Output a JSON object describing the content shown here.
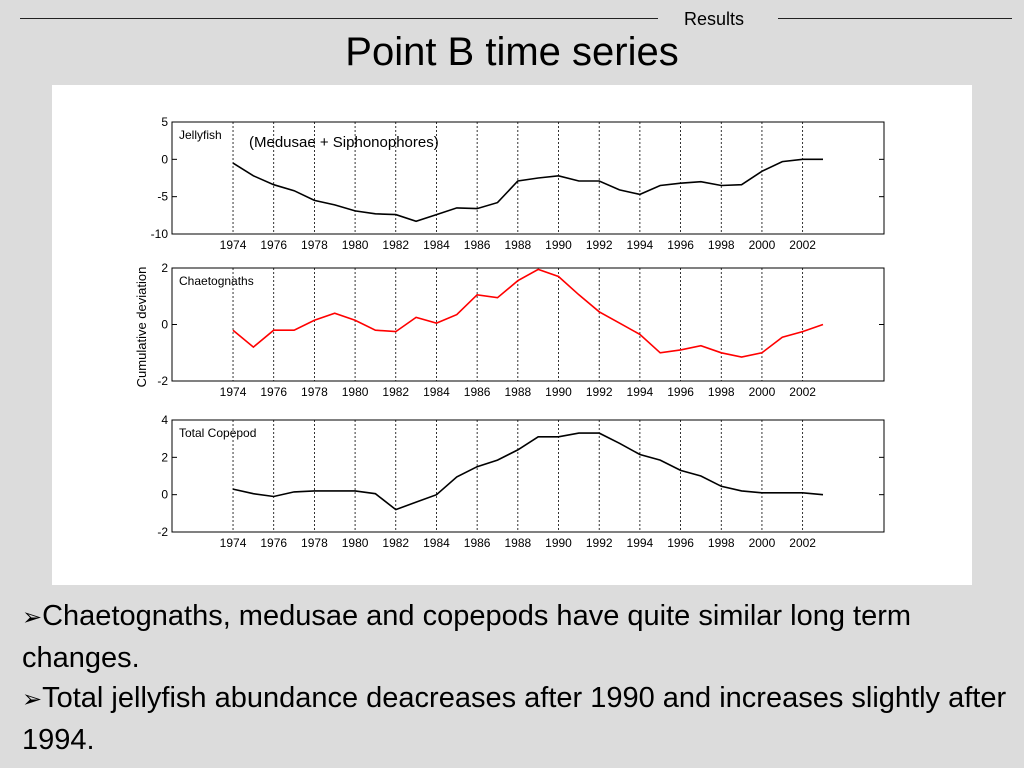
{
  "header": {
    "section": "Results",
    "title": "Point B time series"
  },
  "bullets": [
    {
      "marker": "➢",
      "text": "Chaetognaths, medusae and copepods have quite similar long term changes."
    },
    {
      "marker": "➢",
      "text": "Total jellyfish abundance deacreases after 1990 and increases slightly after 1994."
    }
  ],
  "shared_ylabel": "Cumulative deviation",
  "chart_data": [
    {
      "type": "line",
      "title": "",
      "panel_label": "Jellyfish",
      "annotation": "(Medusae + Siphonophores)",
      "xlabel": "",
      "ylabel": "",
      "xlim": [
        1971,
        2006
      ],
      "ylim": [
        -10,
        5
      ],
      "x_ticks": [
        1974,
        1976,
        1978,
        1980,
        1982,
        1984,
        1986,
        1988,
        1990,
        1992,
        1994,
        1996,
        1998,
        2000,
        2002
      ],
      "y_ticks": [
        5,
        0,
        -5,
        -10
      ],
      "vgrid": "dashed at x ticks",
      "color": "#000000",
      "x": [
        1974,
        1975,
        1976,
        1977,
        1978,
        1979,
        1980,
        1981,
        1982,
        1983,
        1984,
        1985,
        1986,
        1987,
        1988,
        1989,
        1990,
        1991,
        1992,
        1993,
        1994,
        1995,
        1996,
        1997,
        1998,
        1999,
        2000,
        2001,
        2002,
        2003
      ],
      "y": [
        -0.5,
        -2.2,
        -3.4,
        -4.2,
        -5.5,
        -6.1,
        -6.9,
        -7.3,
        -7.4,
        -8.3,
        -7.4,
        -6.5,
        -6.6,
        -5.8,
        -2.9,
        -2.5,
        -2.2,
        -2.9,
        -2.9,
        -4.1,
        -4.7,
        -3.5,
        -3.2,
        -3.0,
        -3.5,
        -3.4,
        -1.6,
        -0.3,
        0.0,
        0.0
      ]
    },
    {
      "type": "line",
      "title": "",
      "panel_label": "Chaetognaths",
      "xlabel": "",
      "ylabel": "",
      "xlim": [
        1971,
        2006
      ],
      "ylim": [
        -2,
        2
      ],
      "x_ticks": [
        1974,
        1976,
        1978,
        1980,
        1982,
        1984,
        1986,
        1988,
        1990,
        1992,
        1994,
        1996,
        1998,
        2000,
        2002
      ],
      "y_ticks": [
        2,
        0,
        -2
      ],
      "vgrid": "dashed at x ticks",
      "color": "#ff0000",
      "x": [
        1974,
        1975,
        1976,
        1977,
        1978,
        1979,
        1980,
        1981,
        1982,
        1983,
        1984,
        1985,
        1986,
        1987,
        1988,
        1989,
        1990,
        1991,
        1992,
        1993,
        1994,
        1995,
        1996,
        1997,
        1998,
        1999,
        2000,
        2001,
        2002,
        2003
      ],
      "y": [
        -0.2,
        -0.8,
        -0.2,
        -0.2,
        0.15,
        0.4,
        0.15,
        -0.2,
        -0.25,
        0.25,
        0.05,
        0.35,
        1.05,
        0.95,
        1.55,
        1.95,
        1.7,
        1.05,
        0.45,
        0.05,
        -0.35,
        -1.0,
        -0.9,
        -0.75,
        -1.0,
        -1.15,
        -1.0,
        -0.45,
        -0.25,
        0.0
      ]
    },
    {
      "type": "line",
      "title": "",
      "panel_label": "Total Copepod",
      "xlabel": "",
      "ylabel": "",
      "xlim": [
        1971,
        2006
      ],
      "ylim": [
        -2,
        4
      ],
      "x_ticks": [
        1974,
        1976,
        1978,
        1980,
        1982,
        1984,
        1986,
        1988,
        1990,
        1992,
        1994,
        1996,
        1998,
        2000,
        2002
      ],
      "y_ticks": [
        4,
        2,
        0,
        -2
      ],
      "vgrid": "dashed at x ticks",
      "color": "#000000",
      "x": [
        1974,
        1975,
        1976,
        1977,
        1978,
        1979,
        1980,
        1981,
        1982,
        1983,
        1984,
        1985,
        1986,
        1987,
        1988,
        1989,
        1990,
        1991,
        1992,
        1993,
        1994,
        1995,
        1996,
        1997,
        1998,
        1999,
        2000,
        2001,
        2002,
        2003
      ],
      "y": [
        0.3,
        0.05,
        -0.1,
        0.15,
        0.2,
        0.2,
        0.2,
        0.05,
        -0.8,
        -0.4,
        0.0,
        0.95,
        1.5,
        1.85,
        2.4,
        3.1,
        3.1,
        3.3,
        3.3,
        2.75,
        2.15,
        1.85,
        1.3,
        1.0,
        0.45,
        0.2,
        0.1,
        0.1,
        0.1,
        0.0
      ]
    }
  ]
}
